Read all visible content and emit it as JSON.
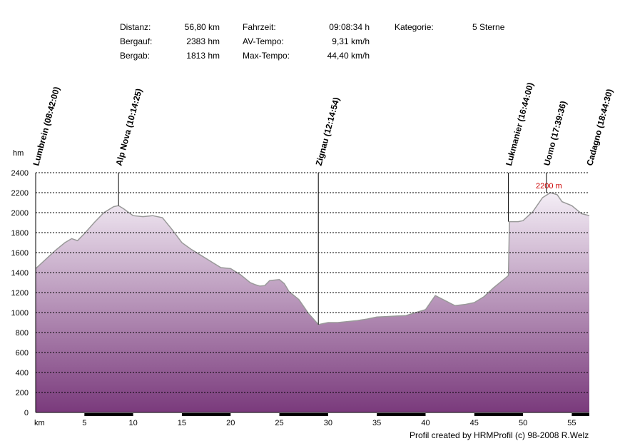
{
  "stats": {
    "items": [
      {
        "label": "Distanz:",
        "value": "56,80 km"
      },
      {
        "label": "Bergauf:",
        "value": "2383 hm"
      },
      {
        "label": "Bergab:",
        "value": "1813 hm"
      },
      {
        "label": "Fahrzeit:",
        "value": "09:08:34 h"
      },
      {
        "label": "AV-Tempo:",
        "value": "9,31 km/h"
      },
      {
        "label": "Max-Tempo:",
        "value": "44,40 km/h"
      },
      {
        "label": "Kategorie:",
        "value": "5 Sterne"
      }
    ]
  },
  "credit": "Profil created by HRMProfil (c) 98-2008 R.Welz",
  "chart_data": {
    "type": "area",
    "ylabel": "hm",
    "xlabel": "km",
    "ylim": [
      0,
      2400
    ],
    "xlim": [
      0,
      56.8
    ],
    "yticks": [
      0,
      200,
      400,
      600,
      800,
      1000,
      1200,
      1400,
      1600,
      1800,
      2000,
      2200,
      2400
    ],
    "xticks": [
      5,
      10,
      15,
      20,
      25,
      30,
      35,
      40,
      45,
      50,
      55
    ],
    "grid": true,
    "colors": {
      "area_top": "#f4eef6",
      "area_bottom": "#7a3a7c",
      "line": "#999999",
      "axis": "#000000",
      "max_label": "#cc0000"
    },
    "max_label": {
      "text": "2200 m",
      "x": 52.8,
      "y": 2200
    },
    "waypoints": [
      {
        "name": "Lumbrein (08:42:00)",
        "x": 0,
        "y": 1440
      },
      {
        "name": "Alp Nova (10:14:25)",
        "x": 8.5,
        "y": 2070
      },
      {
        "name": "Zignau (12:14:54)",
        "x": 29,
        "y": 880
      },
      {
        "name": "Lukmanier (16:44:00)",
        "x": 48.5,
        "y": 1910
      },
      {
        "name": "Uomo (17:39:36)",
        "x": 52.4,
        "y": 2200
      },
      {
        "name": "Cadagno (18:44:30)",
        "x": 56.8,
        "y": 1970
      }
    ],
    "series": [
      {
        "x": [
          0,
          1,
          2,
          3,
          3.7,
          4.3,
          5,
          6,
          7,
          8,
          8.5,
          9,
          10,
          11,
          12,
          13,
          14,
          15,
          16,
          17,
          18,
          19,
          20,
          21,
          22,
          22.5,
          23,
          23.5,
          24,
          25,
          25.5,
          26,
          27,
          28,
          29,
          30,
          31,
          32,
          33,
          34,
          35,
          36,
          37,
          38,
          39,
          40,
          41,
          42,
          43,
          44,
          45,
          46,
          47,
          48,
          48.5,
          48.6,
          49.5,
          50,
          51,
          52,
          52.8,
          53.5,
          54,
          55,
          56,
          56.8
        ],
        "y": [
          1440,
          1530,
          1620,
          1700,
          1740,
          1720,
          1790,
          1900,
          2000,
          2060,
          2070,
          2040,
          1970,
          1960,
          1970,
          1950,
          1830,
          1700,
          1630,
          1570,
          1510,
          1450,
          1440,
          1380,
          1300,
          1280,
          1265,
          1270,
          1320,
          1330,
          1290,
          1210,
          1130,
          990,
          880,
          900,
          900,
          910,
          920,
          935,
          955,
          960,
          965,
          970,
          1000,
          1030,
          1170,
          1120,
          1070,
          1080,
          1100,
          1160,
          1250,
          1330,
          1370,
          1910,
          1910,
          1920,
          2010,
          2150,
          2200,
          2180,
          2110,
          2070,
          1990,
          1970
        ]
      }
    ]
  }
}
